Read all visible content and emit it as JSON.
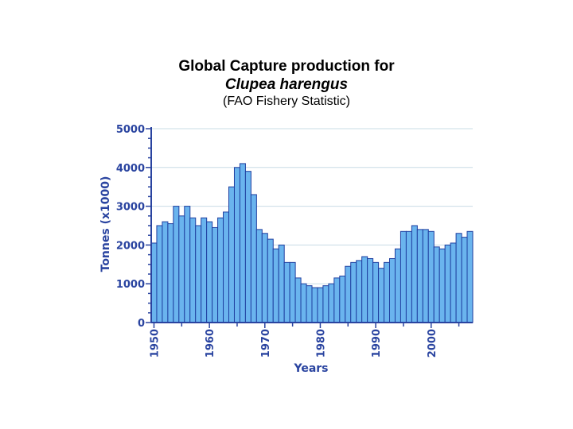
{
  "header": {
    "title": "Global Capture production for",
    "species": "Clupea harengus",
    "subtitle": "(FAO Fishery Statistic)"
  },
  "chart_data": {
    "type": "bar",
    "xlabel": "Years",
    "ylabel": "Tonnes (x1000)",
    "ylim": [
      0,
      5000
    ],
    "yticks": [
      "0",
      "1000",
      "2000",
      "3000",
      "4000",
      "5000"
    ],
    "xticks": [
      "1950",
      "1960",
      "1970",
      "1980",
      "1990",
      "2000"
    ],
    "grid": true,
    "x": [
      1950,
      1951,
      1952,
      1953,
      1954,
      1955,
      1956,
      1957,
      1958,
      1959,
      1960,
      1961,
      1962,
      1963,
      1964,
      1965,
      1966,
      1967,
      1968,
      1969,
      1970,
      1971,
      1972,
      1973,
      1974,
      1975,
      1976,
      1977,
      1978,
      1979,
      1980,
      1981,
      1982,
      1983,
      1984,
      1985,
      1986,
      1987,
      1988,
      1989,
      1990,
      1991,
      1992,
      1993,
      1994,
      1995,
      1996,
      1997,
      1998,
      1999,
      2000,
      2001,
      2002,
      2003,
      2004,
      2005,
      2006,
      2007
    ],
    "values": [
      2050,
      2500,
      2600,
      2550,
      3000,
      2750,
      3000,
      2700,
      2500,
      2700,
      2600,
      2450,
      2700,
      2850,
      3500,
      4000,
      4100,
      3900,
      3300,
      2400,
      2300,
      2150,
      1900,
      2000,
      1550,
      1550,
      1150,
      1000,
      950,
      900,
      900,
      950,
      1000,
      1150,
      1200,
      1450,
      1550,
      1600,
      1700,
      1650,
      1550,
      1400,
      1550,
      1650,
      1900,
      2350,
      2350,
      2500,
      2400,
      2400,
      2350,
      1950,
      1900,
      2000,
      2050,
      2300,
      2200,
      2350
    ],
    "bar_color": "#6ab4ee",
    "edge_color": "#1f3fa0",
    "axis_color": "#2a44a0",
    "grid_color": "#c8dce6"
  }
}
